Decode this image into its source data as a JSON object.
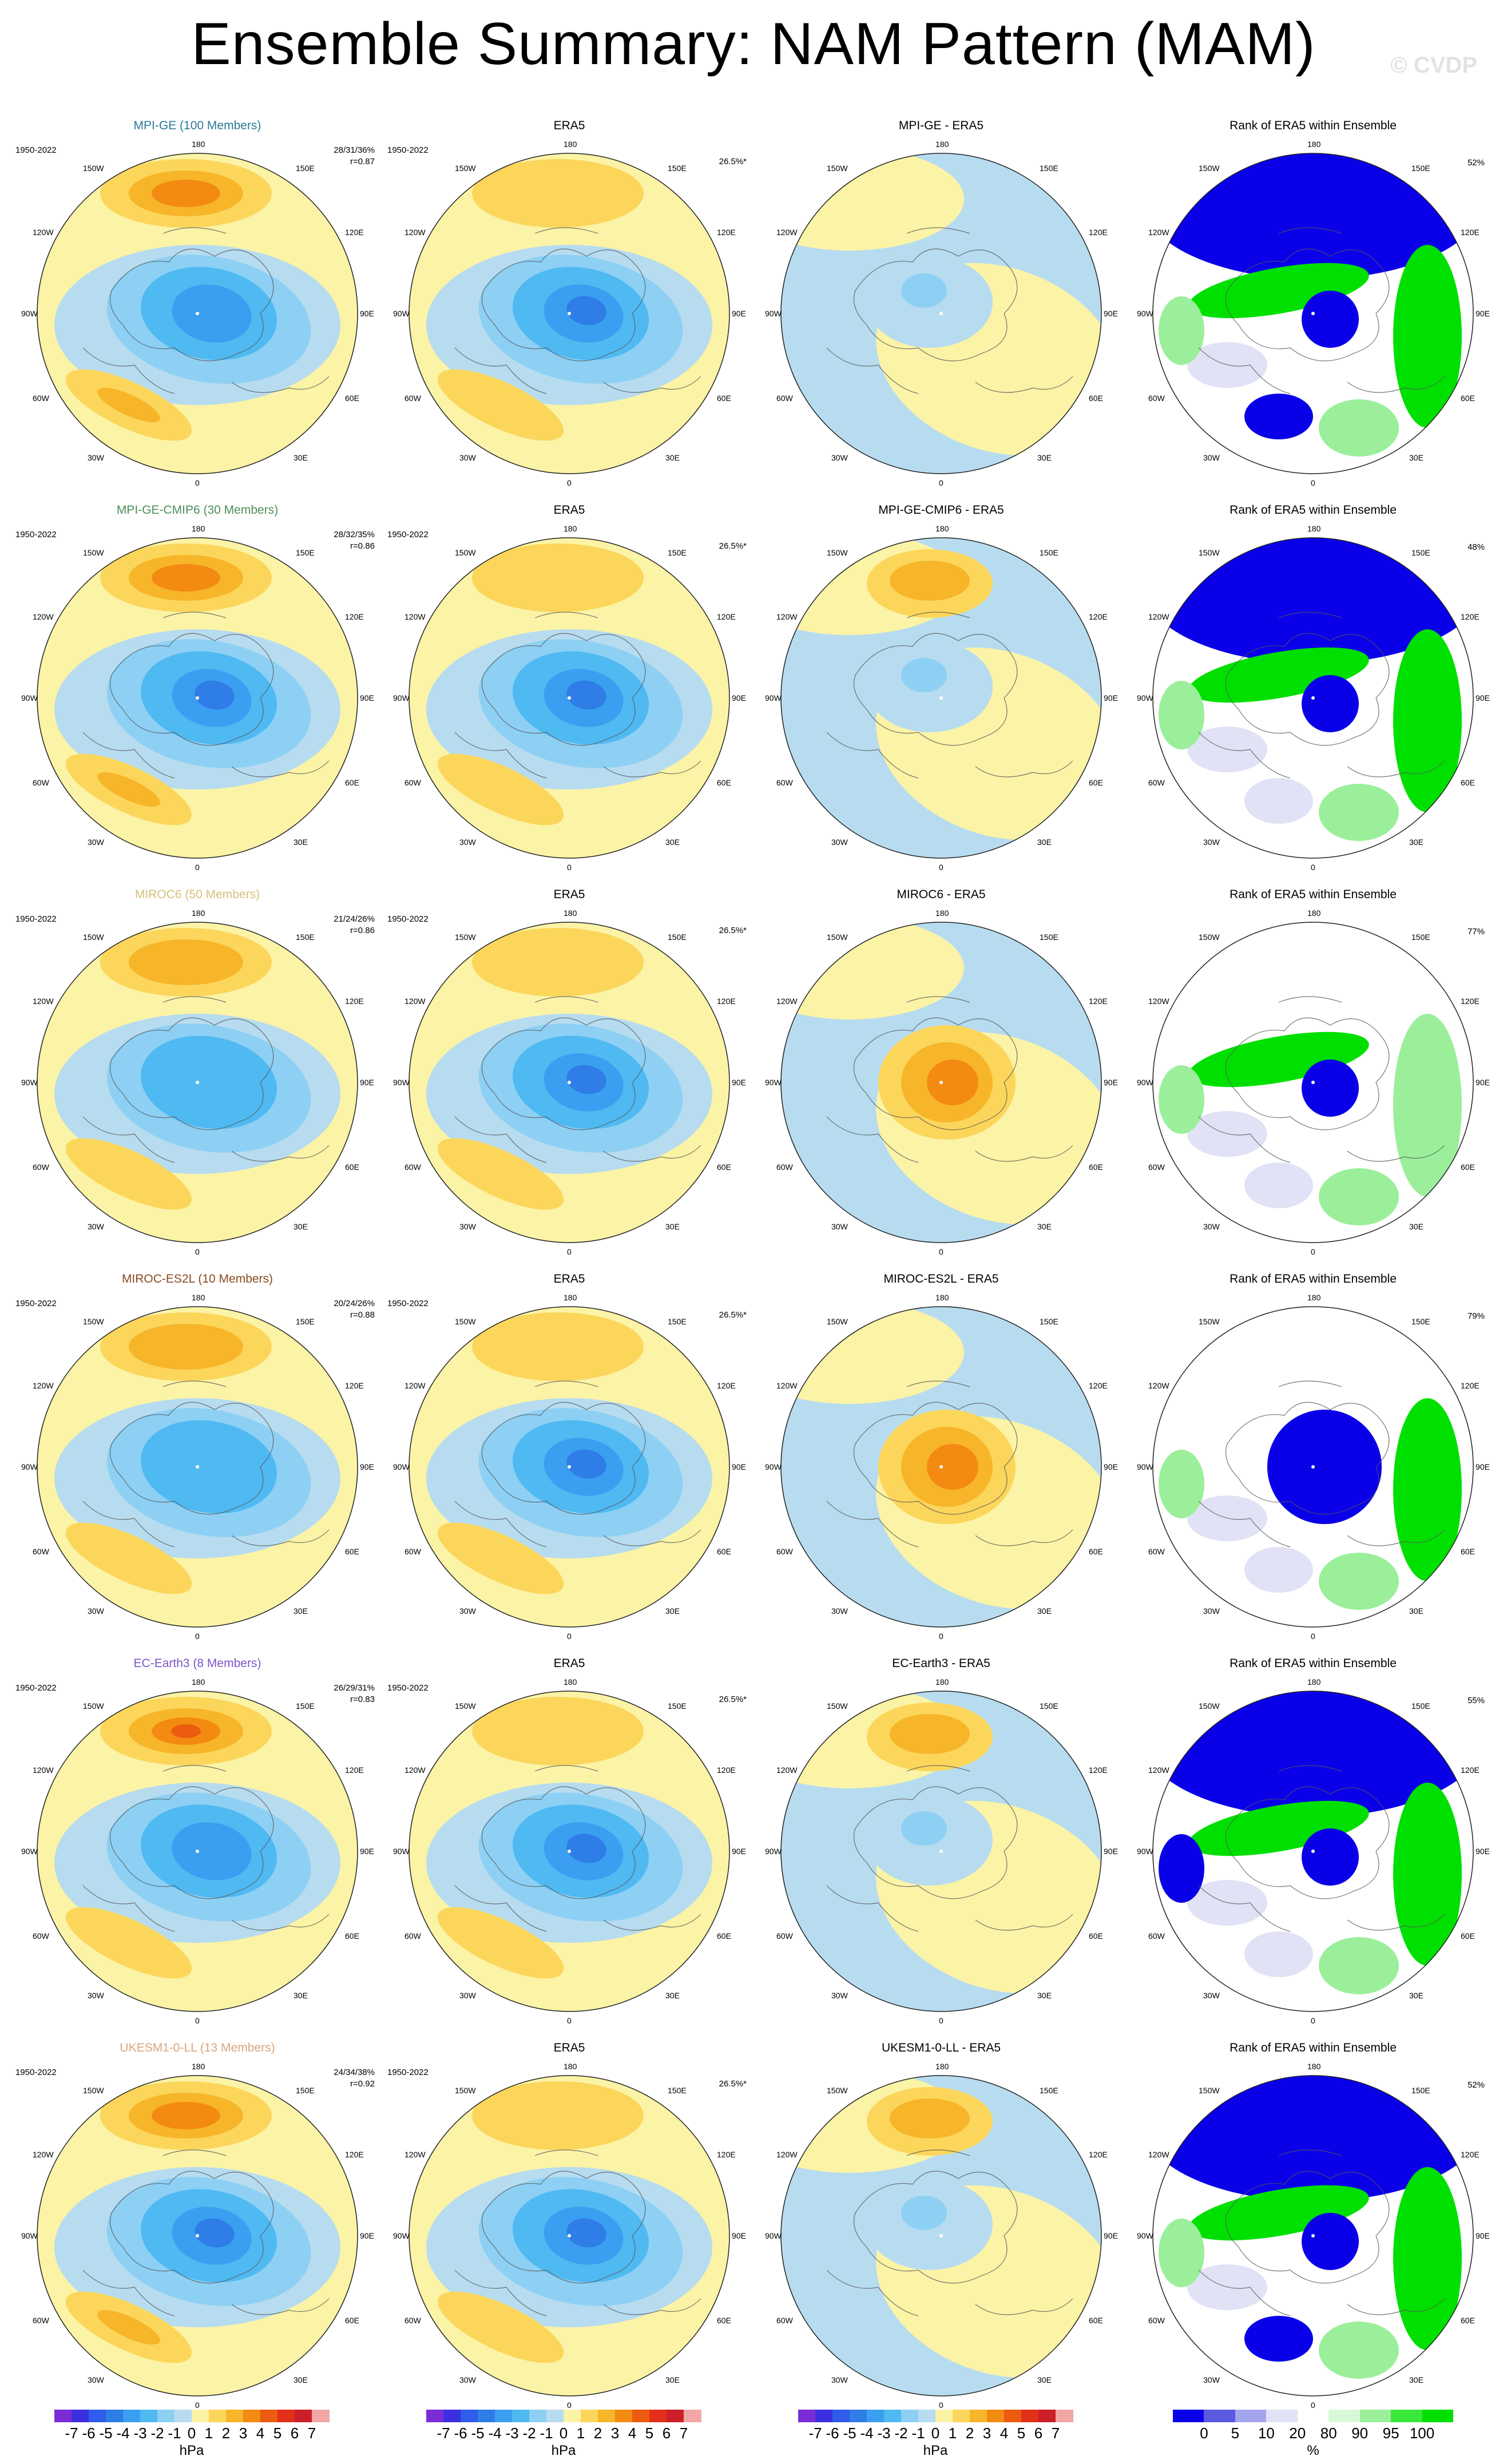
{
  "header": {
    "title": "Ensemble Summary: NAM Pattern (MAM)",
    "watermark": "© CVDP"
  },
  "longitude_labels": {
    "top": "180",
    "bottom": "0",
    "upper_left": "150W",
    "upper_right": "150E",
    "mid_upper_left": "120W",
    "mid_upper_right": "120E",
    "left": "90W",
    "right": "90E",
    "mid_lower_left": "60W",
    "mid_lower_right": "60E",
    "lower_left": "30W",
    "lower_right": "30E"
  },
  "rows": [
    {
      "model_title": "MPI-GE (100 Members)",
      "model_color": "#2a7a9a",
      "period": "1950-2022",
      "stats_pct": "28/31/36%",
      "stats_r": "r=0.87",
      "obs_title": "ERA5",
      "obs_period": "1950-2022",
      "obs_pct": "26.5%*",
      "diff_title": "MPI-GE - ERA5",
      "rank_title": "Rank of ERA5 within Ensemble",
      "rank_pct": "52%"
    },
    {
      "model_title": "MPI-GE-CMIP6 (30 Members)",
      "model_color": "#4b8e5a",
      "period": "1950-2022",
      "stats_pct": "28/32/35%",
      "stats_r": "r=0.86",
      "obs_title": "ERA5",
      "obs_period": "1950-2022",
      "obs_pct": "26.5%*",
      "diff_title": "MPI-GE-CMIP6 - ERA5",
      "rank_title": "Rank of ERA5 within Ensemble",
      "rank_pct": "48%"
    },
    {
      "model_title": "MIROC6 (50 Members)",
      "model_color": "#d4c27a",
      "period": "1950-2022",
      "stats_pct": "21/24/26%",
      "stats_r": "r=0.86",
      "obs_title": "ERA5",
      "obs_period": "1950-2022",
      "obs_pct": "26.5%*",
      "diff_title": "MIROC6 - ERA5",
      "rank_title": "Rank of ERA5 within Ensemble",
      "rank_pct": "77%"
    },
    {
      "model_title": "MIROC-ES2L (10 Members)",
      "model_color": "#8a4a1f",
      "period": "1950-2022",
      "stats_pct": "20/24/26%",
      "stats_r": "r=0.88",
      "obs_title": "ERA5",
      "obs_period": "1950-2022",
      "obs_pct": "26.5%*",
      "diff_title": "MIROC-ES2L - ERA5",
      "rank_title": "Rank of ERA5 within Ensemble",
      "rank_pct": "79%"
    },
    {
      "model_title": "EC-Earth3 (8 Members)",
      "model_color": "#7a56c8",
      "period": "1950-2022",
      "stats_pct": "26/29/31%",
      "stats_r": "r=0.83",
      "obs_title": "ERA5",
      "obs_period": "1950-2022",
      "obs_pct": "26.5%*",
      "diff_title": "EC-Earth3 - ERA5",
      "rank_title": "Rank of ERA5 within Ensemble",
      "rank_pct": "55%"
    },
    {
      "model_title": "UKESM1-0-LL (13 Members)",
      "model_color": "#d9a57c",
      "period": "1950-2022",
      "stats_pct": "24/34/38%",
      "stats_r": "r=0.92",
      "obs_title": "ERA5",
      "obs_period": "1950-2022",
      "obs_pct": "26.5%*",
      "diff_title": "UKESM1-0-LL - ERA5",
      "rank_title": "Rank of ERA5 within Ensemble",
      "rank_pct": "52%"
    }
  ],
  "colorbars": {
    "hpa": {
      "labels": [
        "-7",
        "-6",
        "-5",
        "-4",
        "-3",
        "-2",
        "-1",
        "0",
        "1",
        "2",
        "3",
        "4",
        "5",
        "6",
        "7"
      ],
      "unit": "hPa",
      "colors": [
        "#7b2cd6",
        "#3a2ee0",
        "#2f5cea",
        "#2f7de6",
        "#3a9ff0",
        "#4fb9f2",
        "#8dd0f4",
        "#b7dcf0",
        "#fbf3a6",
        "#fbd65b",
        "#f7b52a",
        "#f38a12",
        "#ec5b10",
        "#e3301a",
        "#cd1f2a",
        "#f2a7a7"
      ]
    },
    "rank": {
      "labels": [
        "0",
        "5",
        "10",
        "20",
        "80",
        "90",
        "95",
        "100"
      ],
      "unit": "%",
      "colors": [
        "#0a00e8",
        "#5a5ae0",
        "#a5a5ee",
        "#e2e2f6",
        "#ffffff",
        "#d8f8d8",
        "#9bef9b",
        "#3ae83a",
        "#00e000"
      ]
    }
  }
}
